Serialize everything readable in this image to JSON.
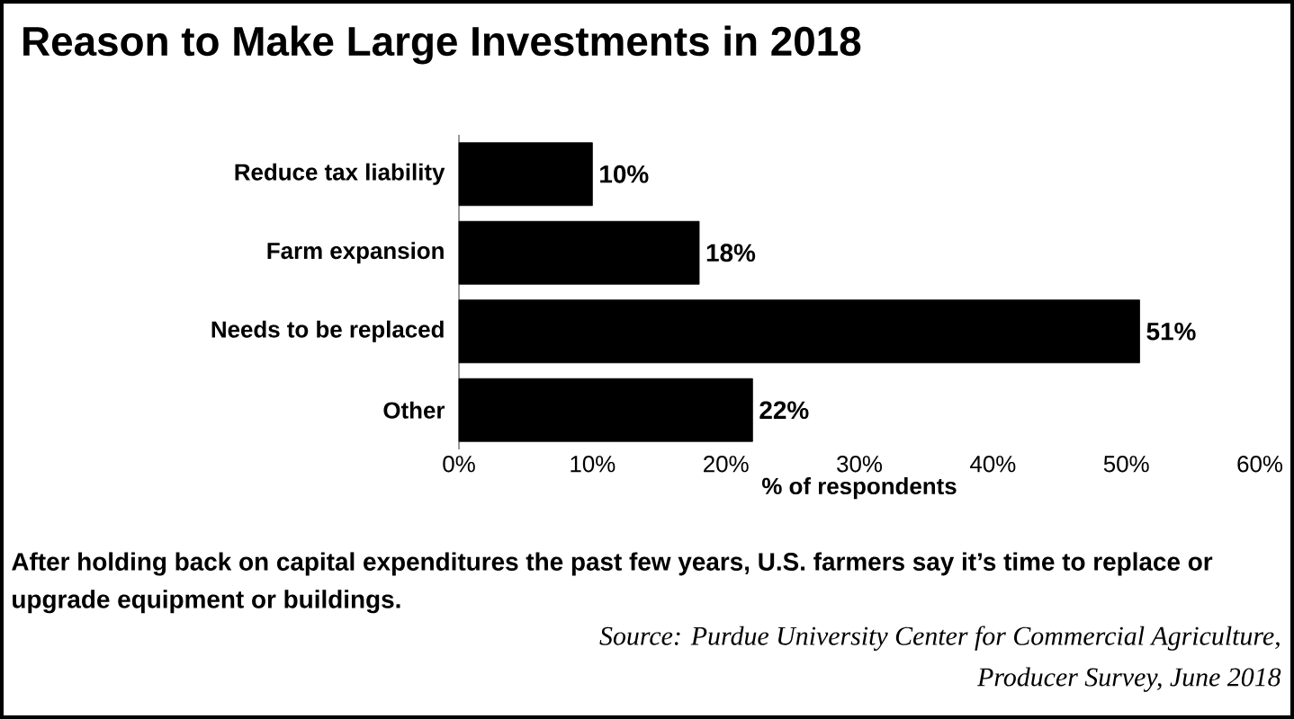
{
  "chart_data": {
    "type": "bar",
    "orientation": "horizontal",
    "title": "Reason to Make Large Investments in 2018",
    "categories": [
      "Reduce tax liability",
      "Farm expansion",
      "Needs to be replaced",
      "Other"
    ],
    "values": [
      10,
      18,
      51,
      22
    ],
    "value_labels": [
      "10%",
      "18%",
      "51%",
      "22%"
    ],
    "color": "#000000",
    "xlim": [
      0,
      60
    ],
    "xticks": [
      {
        "value": 0,
        "label": "0%"
      },
      {
        "value": 10,
        "label": "10%"
      },
      {
        "value": 20,
        "label": "20%"
      },
      {
        "value": 30,
        "label": "30%"
      },
      {
        "value": 40,
        "label": "40%"
      },
      {
        "value": 50,
        "label": "50%"
      },
      {
        "value": 60,
        "label": "60%"
      }
    ],
    "xlabel": "% of respondents",
    "annotations": [
      "After holding back on capital expenditures the past few years, U.S. farmers say it’s time to replace or upgrade equipment or buildings.",
      "Source: Purdue University Center for Commercial Agriculture, Producer Survey, June 2018"
    ]
  }
}
